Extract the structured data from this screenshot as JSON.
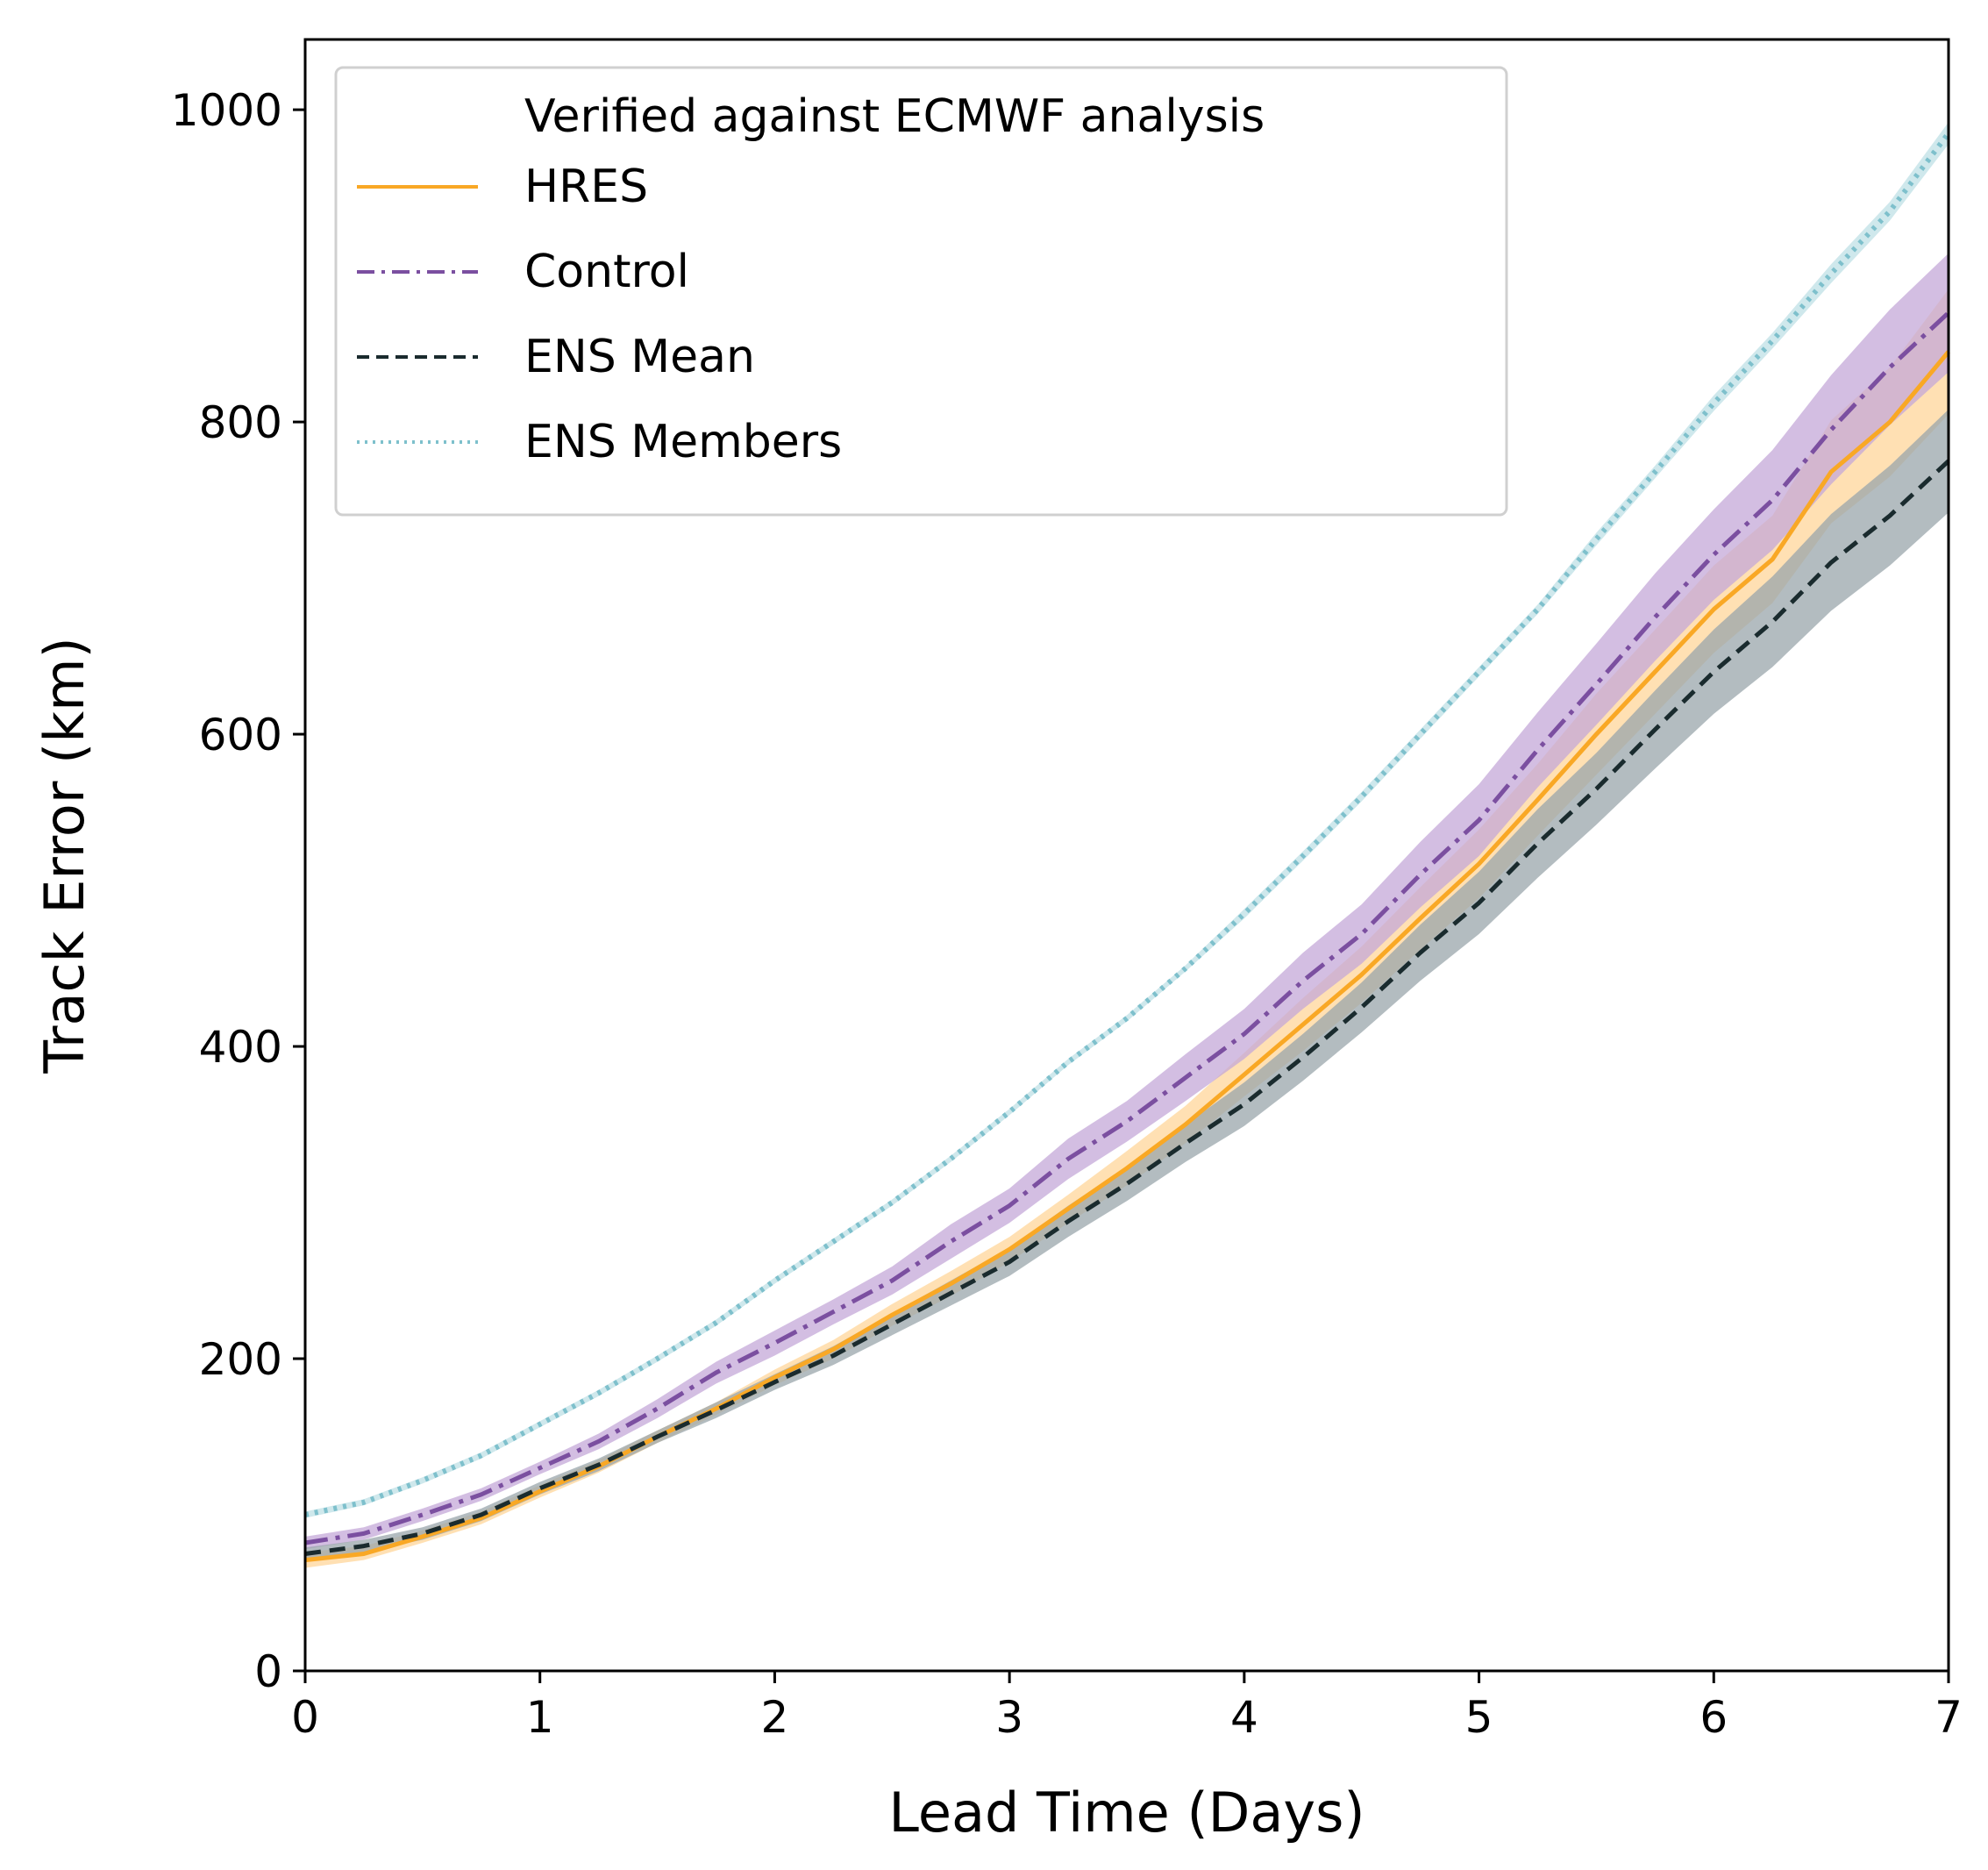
{
  "chart_data": {
    "type": "line",
    "title": "",
    "xlabel": "Lead Time (Days)",
    "ylabel": "Track Error (km)",
    "xlim": [
      0,
      7
    ],
    "ylim": [
      0,
      1045
    ],
    "xticks": [
      0,
      1,
      2,
      3,
      4,
      5,
      6,
      7
    ],
    "yticks": [
      0,
      200,
      400,
      600,
      800,
      1000
    ],
    "grid": false,
    "legend": {
      "placement": "top-left",
      "title": "Verified against ECMWF analysis"
    },
    "x": [
      0,
      0.25,
      0.5,
      0.75,
      1,
      1.25,
      1.5,
      1.75,
      2,
      2.25,
      2.5,
      2.75,
      3,
      3.25,
      3.5,
      3.75,
      4,
      4.25,
      4.5,
      4.75,
      5,
      5.25,
      5.5,
      5.75,
      6,
      6.25,
      6.5,
      6.75,
      7
    ],
    "series": [
      {
        "name": "HRES",
        "style": "solid",
        "color": "#f9a825",
        "band_color": "#ffd699",
        "values": [
          71,
          75,
          86,
          98,
          115,
          131,
          150,
          168,
          188,
          206,
          228,
          248,
          270,
          296,
          322,
          350,
          382,
          414,
          446,
          482,
          517,
          558,
          600,
          640,
          680,
          712,
          768,
          800,
          845
        ],
        "lower": [
          66,
          71,
          82,
          94,
          111,
          127,
          146,
          164,
          183,
          200,
          221,
          240,
          262,
          287,
          311,
          338,
          368,
          397,
          428,
          462,
          495,
          535,
          574,
          613,
          652,
          684,
          735,
          765,
          805
        ],
        "upper": [
          76,
          80,
          90,
          102,
          119,
          135,
          154,
          172,
          193,
          212,
          235,
          256,
          278,
          305,
          333,
          362,
          396,
          431,
          464,
          502,
          539,
          581,
          626,
          667,
          708,
          740,
          801,
          835,
          885
        ]
      },
      {
        "name": "Control",
        "style": "dashdot",
        "color": "#7b4fa0",
        "band_color": "#c4a8d8",
        "values": [
          82,
          88,
          100,
          113,
          130,
          147,
          168,
          191,
          210,
          230,
          250,
          275,
          298,
          328,
          352,
          380,
          408,
          442,
          472,
          510,
          545,
          590,
          632,
          675,
          715,
          750,
          795,
          835,
          870
        ],
        "lower": [
          78,
          84,
          96,
          109,
          126,
          142,
          162,
          184,
          202,
          222,
          241,
          264,
          287,
          315,
          339,
          365,
          392,
          424,
          453,
          489,
          522,
          566,
          606,
          647,
          686,
          718,
          760,
          798,
          832
        ],
        "upper": [
          86,
          92,
          104,
          117,
          134,
          152,
          174,
          198,
          218,
          238,
          259,
          286,
          309,
          341,
          365,
          395,
          424,
          460,
          491,
          531,
          568,
          614,
          658,
          703,
          744,
          782,
          830,
          872,
          908
        ]
      },
      {
        "name": "ENS Mean",
        "style": "dashed",
        "color": "#1a2b2e",
        "band_color": "#9aa6ab",
        "values": [
          75,
          80,
          88,
          100,
          117,
          132,
          150,
          167,
          185,
          202,
          222,
          242,
          262,
          288,
          312,
          338,
          363,
          393,
          425,
          460,
          492,
          530,
          565,
          603,
          640,
          672,
          710,
          740,
          775
        ],
        "lower": [
          71,
          76,
          84,
          96,
          113,
          128,
          146,
          162,
          180,
          196,
          215,
          234,
          253,
          278,
          301,
          326,
          349,
          378,
          409,
          442,
          472,
          508,
          542,
          578,
          613,
          643,
          679,
          708,
          742
        ],
        "upper": [
          79,
          84,
          92,
          104,
          121,
          136,
          154,
          172,
          190,
          208,
          229,
          250,
          271,
          298,
          323,
          350,
          377,
          408,
          441,
          478,
          512,
          552,
          588,
          628,
          667,
          701,
          741,
          772,
          808
        ]
      },
      {
        "name": "ENS Members",
        "style": "dotted",
        "color": "#7ec0cc",
        "band_color": "#bfe0e6",
        "values": [
          100,
          108,
          122,
          138,
          158,
          178,
          200,
          223,
          250,
          275,
          300,
          328,
          358,
          390,
          418,
          450,
          485,
          522,
          560,
          600,
          640,
          680,
          725,
          768,
          812,
          852,
          895,
          935,
          985
        ],
        "lower": [
          98,
          106,
          120,
          136,
          156,
          176,
          198,
          221,
          248,
          273,
          298,
          326,
          356,
          388,
          416,
          448,
          482,
          519,
          557,
          597,
          637,
          677,
          721,
          764,
          807,
          847,
          889,
          929,
          978
        ],
        "upper": [
          102,
          110,
          124,
          140,
          160,
          180,
          202,
          225,
          252,
          277,
          302,
          330,
          360,
          392,
          420,
          452,
          488,
          525,
          563,
          603,
          643,
          683,
          729,
          772,
          817,
          857,
          901,
          941,
          992
        ]
      }
    ]
  }
}
